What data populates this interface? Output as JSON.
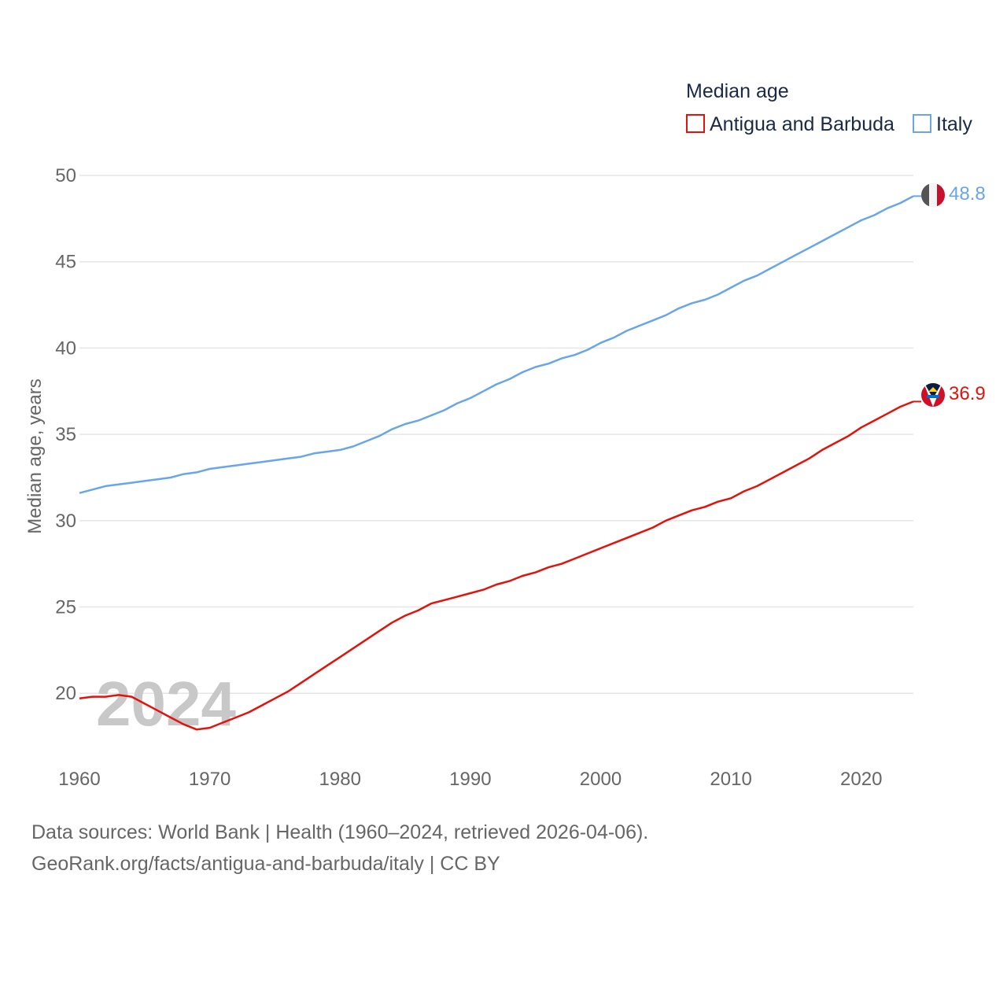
{
  "colors": {
    "antigua": "#e3120b",
    "italy": "#68a6e8",
    "grid": "#e6e6e6",
    "text": "#666666"
  },
  "legend": {
    "title": "Median age",
    "items": [
      "Antigua and Barbuda",
      "Italy"
    ]
  },
  "year_watermark": "2024",
  "end_labels": {
    "antigua": "36.9",
    "italy": "48.8"
  },
  "source": {
    "line1": "Data sources: World Bank | Health (1960–2024, retrieved 2026-04-06).",
    "line2": "GeoRank.org/facts/antigua-and-barbuda/italy | CC BY"
  },
  "chart_data": {
    "type": "line",
    "title": "Median age",
    "xlabel": "",
    "ylabel": "Median age, years",
    "xlim": [
      1960,
      2024
    ],
    "ylim": [
      16,
      50
    ],
    "x_ticks": [
      1960,
      1970,
      1980,
      1990,
      2000,
      2010,
      2020
    ],
    "y_ticks": [
      20,
      25,
      30,
      35,
      40,
      45,
      50
    ],
    "grid": true,
    "legend_position": "top-right",
    "x": [
      1960,
      1961,
      1962,
      1963,
      1964,
      1965,
      1966,
      1967,
      1968,
      1969,
      1970,
      1971,
      1972,
      1973,
      1974,
      1975,
      1976,
      1977,
      1978,
      1979,
      1980,
      1981,
      1982,
      1983,
      1984,
      1985,
      1986,
      1987,
      1988,
      1989,
      1990,
      1991,
      1992,
      1993,
      1994,
      1995,
      1996,
      1997,
      1998,
      1999,
      2000,
      2001,
      2002,
      2003,
      2004,
      2005,
      2006,
      2007,
      2008,
      2009,
      2010,
      2011,
      2012,
      2013,
      2014,
      2015,
      2016,
      2017,
      2018,
      2019,
      2020,
      2021,
      2022,
      2023,
      2024
    ],
    "series": [
      {
        "name": "Antigua and Barbuda",
        "color": "#e3120b",
        "values": [
          19.7,
          19.8,
          19.8,
          19.9,
          19.8,
          19.4,
          19.0,
          18.6,
          18.2,
          17.9,
          18.0,
          18.3,
          18.6,
          18.9,
          19.3,
          19.7,
          20.1,
          20.6,
          21.1,
          21.6,
          22.1,
          22.6,
          23.1,
          23.6,
          24.1,
          24.5,
          24.8,
          25.2,
          25.4,
          25.6,
          25.8,
          26.0,
          26.3,
          26.5,
          26.8,
          27.0,
          27.3,
          27.5,
          27.8,
          28.1,
          28.4,
          28.7,
          29.0,
          29.3,
          29.6,
          30.0,
          30.3,
          30.6,
          30.8,
          31.1,
          31.3,
          31.7,
          32.0,
          32.4,
          32.8,
          33.2,
          33.6,
          34.1,
          34.5,
          34.9,
          35.4,
          35.8,
          36.2,
          36.6,
          36.9
        ]
      },
      {
        "name": "Italy",
        "color": "#68a6e8",
        "values": [
          31.6,
          31.8,
          32.0,
          32.1,
          32.2,
          32.3,
          32.4,
          32.5,
          32.7,
          32.8,
          33.0,
          33.1,
          33.2,
          33.3,
          33.4,
          33.5,
          33.6,
          33.7,
          33.9,
          34.0,
          34.1,
          34.3,
          34.6,
          34.9,
          35.3,
          35.6,
          35.8,
          36.1,
          36.4,
          36.8,
          37.1,
          37.5,
          37.9,
          38.2,
          38.6,
          38.9,
          39.1,
          39.4,
          39.6,
          39.9,
          40.3,
          40.6,
          41.0,
          41.3,
          41.6,
          41.9,
          42.3,
          42.6,
          42.8,
          43.1,
          43.5,
          43.9,
          44.2,
          44.6,
          45.0,
          45.4,
          45.8,
          46.2,
          46.6,
          47.0,
          47.4,
          47.7,
          48.1,
          48.4,
          48.8
        ]
      }
    ]
  }
}
